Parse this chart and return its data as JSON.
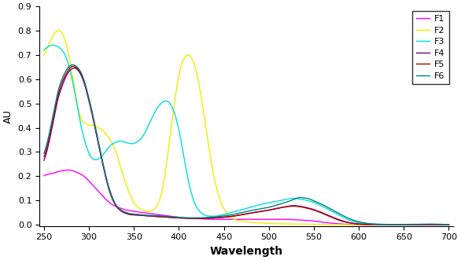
{
  "title": "",
  "xlabel": "Wavelength",
  "ylabel": "AU",
  "xlim": [
    245,
    705
  ],
  "ylim": [
    -0.005,
    0.9
  ],
  "xticks": [
    250,
    300,
    350,
    400,
    450,
    500,
    550,
    600,
    650,
    700
  ],
  "yticks": [
    0,
    0.1,
    0.2,
    0.3,
    0.4,
    0.5,
    0.6,
    0.7,
    0.8,
    0.9
  ],
  "series": {
    "F1": {
      "color": "#ff00ff",
      "points": [
        [
          250,
          0.202
        ],
        [
          255,
          0.208
        ],
        [
          260,
          0.212
        ],
        [
          265,
          0.218
        ],
        [
          270,
          0.222
        ],
        [
          275,
          0.225
        ],
        [
          280,
          0.224
        ],
        [
          285,
          0.218
        ],
        [
          290,
          0.21
        ],
        [
          295,
          0.198
        ],
        [
          300,
          0.18
        ],
        [
          305,
          0.16
        ],
        [
          310,
          0.14
        ],
        [
          315,
          0.12
        ],
        [
          320,
          0.1
        ],
        [
          325,
          0.085
        ],
        [
          330,
          0.075
        ],
        [
          335,
          0.068
        ],
        [
          340,
          0.062
        ],
        [
          345,
          0.058
        ],
        [
          350,
          0.055
        ],
        [
          360,
          0.05
        ],
        [
          370,
          0.045
        ],
        [
          380,
          0.04
        ],
        [
          390,
          0.035
        ],
        [
          400,
          0.03
        ],
        [
          410,
          0.027
        ],
        [
          420,
          0.025
        ],
        [
          430,
          0.023
        ],
        [
          440,
          0.022
        ],
        [
          450,
          0.022
        ],
        [
          460,
          0.022
        ],
        [
          470,
          0.022
        ],
        [
          480,
          0.022
        ],
        [
          490,
          0.022
        ],
        [
          500,
          0.022
        ],
        [
          510,
          0.022
        ],
        [
          520,
          0.022
        ],
        [
          530,
          0.02
        ],
        [
          540,
          0.018
        ],
        [
          550,
          0.015
        ],
        [
          560,
          0.01
        ],
        [
          570,
          0.006
        ],
        [
          580,
          0.003
        ],
        [
          590,
          0.001
        ],
        [
          600,
          0.0
        ],
        [
          650,
          0.0
        ],
        [
          700,
          0.0
        ]
      ]
    },
    "F2": {
      "color": "#eeee00",
      "points": [
        [
          250,
          0.7
        ],
        [
          255,
          0.74
        ],
        [
          260,
          0.78
        ],
        [
          265,
          0.8
        ],
        [
          270,
          0.79
        ],
        [
          275,
          0.74
        ],
        [
          280,
          0.65
        ],
        [
          285,
          0.54
        ],
        [
          290,
          0.45
        ],
        [
          295,
          0.42
        ],
        [
          300,
          0.41
        ],
        [
          305,
          0.41
        ],
        [
          310,
          0.4
        ],
        [
          315,
          0.39
        ],
        [
          320,
          0.37
        ],
        [
          325,
          0.34
        ],
        [
          330,
          0.3
        ],
        [
          335,
          0.24
        ],
        [
          340,
          0.18
        ],
        [
          345,
          0.13
        ],
        [
          350,
          0.09
        ],
        [
          355,
          0.07
        ],
        [
          360,
          0.06
        ],
        [
          365,
          0.055
        ],
        [
          370,
          0.058
        ],
        [
          375,
          0.075
        ],
        [
          380,
          0.12
        ],
        [
          385,
          0.22
        ],
        [
          390,
          0.36
        ],
        [
          395,
          0.5
        ],
        [
          400,
          0.62
        ],
        [
          405,
          0.68
        ],
        [
          410,
          0.7
        ],
        [
          415,
          0.68
        ],
        [
          420,
          0.62
        ],
        [
          425,
          0.52
        ],
        [
          430,
          0.4
        ],
        [
          435,
          0.28
        ],
        [
          440,
          0.18
        ],
        [
          445,
          0.11
        ],
        [
          450,
          0.065
        ],
        [
          455,
          0.04
        ],
        [
          460,
          0.025
        ],
        [
          470,
          0.015
        ],
        [
          480,
          0.01
        ],
        [
          490,
          0.007
        ],
        [
          500,
          0.005
        ],
        [
          520,
          0.003
        ],
        [
          540,
          0.002
        ],
        [
          560,
          0.001
        ],
        [
          580,
          0.0
        ],
        [
          600,
          0.0
        ],
        [
          650,
          0.0
        ],
        [
          700,
          0.0
        ]
      ]
    },
    "F3": {
      "color": "#00dddd",
      "points": [
        [
          250,
          0.72
        ],
        [
          255,
          0.735
        ],
        [
          260,
          0.74
        ],
        [
          265,
          0.735
        ],
        [
          270,
          0.72
        ],
        [
          275,
          0.685
        ],
        [
          280,
          0.62
        ],
        [
          285,
          0.53
        ],
        [
          290,
          0.43
        ],
        [
          295,
          0.35
        ],
        [
          300,
          0.295
        ],
        [
          305,
          0.27
        ],
        [
          310,
          0.27
        ],
        [
          315,
          0.285
        ],
        [
          320,
          0.31
        ],
        [
          325,
          0.33
        ],
        [
          330,
          0.34
        ],
        [
          335,
          0.345
        ],
        [
          340,
          0.34
        ],
        [
          345,
          0.335
        ],
        [
          350,
          0.335
        ],
        [
          355,
          0.345
        ],
        [
          360,
          0.365
        ],
        [
          365,
          0.4
        ],
        [
          370,
          0.44
        ],
        [
          375,
          0.475
        ],
        [
          380,
          0.5
        ],
        [
          385,
          0.51
        ],
        [
          390,
          0.5
        ],
        [
          395,
          0.46
        ],
        [
          400,
          0.39
        ],
        [
          405,
          0.29
        ],
        [
          410,
          0.19
        ],
        [
          415,
          0.115
        ],
        [
          420,
          0.07
        ],
        [
          425,
          0.048
        ],
        [
          430,
          0.038
        ],
        [
          435,
          0.035
        ],
        [
          440,
          0.035
        ],
        [
          445,
          0.038
        ],
        [
          450,
          0.042
        ],
        [
          460,
          0.052
        ],
        [
          470,
          0.062
        ],
        [
          480,
          0.072
        ],
        [
          490,
          0.082
        ],
        [
          500,
          0.09
        ],
        [
          510,
          0.098
        ],
        [
          520,
          0.105
        ],
        [
          525,
          0.108
        ],
        [
          530,
          0.108
        ],
        [
          540,
          0.102
        ],
        [
          550,
          0.092
        ],
        [
          560,
          0.075
        ],
        [
          570,
          0.055
        ],
        [
          580,
          0.035
        ],
        [
          590,
          0.018
        ],
        [
          600,
          0.008
        ],
        [
          620,
          0.002
        ],
        [
          650,
          0.0
        ],
        [
          700,
          0.0
        ]
      ]
    },
    "F4": {
      "color": "#770088",
      "points": [
        [
          250,
          0.265
        ],
        [
          255,
          0.33
        ],
        [
          260,
          0.42
        ],
        [
          265,
          0.51
        ],
        [
          270,
          0.57
        ],
        [
          275,
          0.615
        ],
        [
          280,
          0.64
        ],
        [
          285,
          0.645
        ],
        [
          290,
          0.625
        ],
        [
          295,
          0.58
        ],
        [
          300,
          0.51
        ],
        [
          305,
          0.43
        ],
        [
          310,
          0.34
        ],
        [
          315,
          0.255
        ],
        [
          320,
          0.175
        ],
        [
          325,
          0.115
        ],
        [
          330,
          0.078
        ],
        [
          335,
          0.058
        ],
        [
          340,
          0.048
        ],
        [
          345,
          0.042
        ],
        [
          350,
          0.04
        ],
        [
          360,
          0.038
        ],
        [
          370,
          0.035
        ],
        [
          380,
          0.033
        ],
        [
          390,
          0.03
        ],
        [
          400,
          0.028
        ],
        [
          420,
          0.025
        ],
        [
          440,
          0.028
        ],
        [
          460,
          0.035
        ],
        [
          480,
          0.048
        ],
        [
          500,
          0.06
        ],
        [
          510,
          0.068
        ],
        [
          520,
          0.075
        ],
        [
          525,
          0.078
        ],
        [
          530,
          0.078
        ],
        [
          540,
          0.072
        ],
        [
          550,
          0.062
        ],
        [
          560,
          0.048
        ],
        [
          570,
          0.032
        ],
        [
          580,
          0.018
        ],
        [
          590,
          0.008
        ],
        [
          600,
          0.003
        ],
        [
          620,
          0.001
        ],
        [
          650,
          0.0
        ],
        [
          700,
          0.0
        ]
      ]
    },
    "F5": {
      "color": "#aa0000",
      "points": [
        [
          250,
          0.28
        ],
        [
          255,
          0.345
        ],
        [
          260,
          0.435
        ],
        [
          265,
          0.525
        ],
        [
          270,
          0.585
        ],
        [
          275,
          0.625
        ],
        [
          280,
          0.65
        ],
        [
          285,
          0.65
        ],
        [
          290,
          0.63
        ],
        [
          295,
          0.585
        ],
        [
          300,
          0.515
        ],
        [
          305,
          0.435
        ],
        [
          310,
          0.345
        ],
        [
          315,
          0.26
        ],
        [
          320,
          0.18
        ],
        [
          325,
          0.12
        ],
        [
          330,
          0.08
        ],
        [
          335,
          0.06
        ],
        [
          340,
          0.05
        ],
        [
          345,
          0.044
        ],
        [
          350,
          0.042
        ],
        [
          360,
          0.038
        ],
        [
          370,
          0.035
        ],
        [
          380,
          0.033
        ],
        [
          390,
          0.03
        ],
        [
          400,
          0.028
        ],
        [
          420,
          0.025
        ],
        [
          440,
          0.028
        ],
        [
          460,
          0.035
        ],
        [
          480,
          0.048
        ],
        [
          500,
          0.06
        ],
        [
          510,
          0.068
        ],
        [
          520,
          0.074
        ],
        [
          525,
          0.076
        ],
        [
          530,
          0.076
        ],
        [
          540,
          0.07
        ],
        [
          550,
          0.06
        ],
        [
          560,
          0.046
        ],
        [
          570,
          0.03
        ],
        [
          580,
          0.016
        ],
        [
          590,
          0.007
        ],
        [
          600,
          0.002
        ],
        [
          620,
          0.001
        ],
        [
          650,
          0.0
        ],
        [
          700,
          0.0
        ]
      ]
    },
    "F6": {
      "color": "#008080",
      "points": [
        [
          250,
          0.295
        ],
        [
          255,
          0.36
        ],
        [
          260,
          0.45
        ],
        [
          265,
          0.54
        ],
        [
          270,
          0.6
        ],
        [
          275,
          0.638
        ],
        [
          280,
          0.658
        ],
        [
          285,
          0.655
        ],
        [
          290,
          0.635
        ],
        [
          295,
          0.59
        ],
        [
          300,
          0.52
        ],
        [
          305,
          0.44
        ],
        [
          310,
          0.35
        ],
        [
          315,
          0.262
        ],
        [
          320,
          0.182
        ],
        [
          325,
          0.122
        ],
        [
          330,
          0.082
        ],
        [
          335,
          0.062
        ],
        [
          340,
          0.052
        ],
        [
          345,
          0.046
        ],
        [
          350,
          0.044
        ],
        [
          360,
          0.04
        ],
        [
          370,
          0.038
        ],
        [
          380,
          0.036
        ],
        [
          390,
          0.033
        ],
        [
          400,
          0.03
        ],
        [
          420,
          0.028
        ],
        [
          440,
          0.032
        ],
        [
          460,
          0.042
        ],
        [
          480,
          0.058
        ],
        [
          500,
          0.072
        ],
        [
          510,
          0.082
        ],
        [
          520,
          0.094
        ],
        [
          525,
          0.1
        ],
        [
          530,
          0.108
        ],
        [
          535,
          0.112
        ],
        [
          540,
          0.11
        ],
        [
          545,
          0.106
        ],
        [
          550,
          0.098
        ],
        [
          560,
          0.082
        ],
        [
          570,
          0.062
        ],
        [
          580,
          0.042
        ],
        [
          590,
          0.024
        ],
        [
          600,
          0.012
        ],
        [
          610,
          0.005
        ],
        [
          620,
          0.002
        ],
        [
          650,
          0.001
        ],
        [
          700,
          0.0
        ]
      ]
    }
  },
  "legend_order": [
    "F1",
    "F2",
    "F3",
    "F4",
    "F5",
    "F6"
  ],
  "figsize": [
    5.86,
    3.31
  ],
  "dpi": 100
}
